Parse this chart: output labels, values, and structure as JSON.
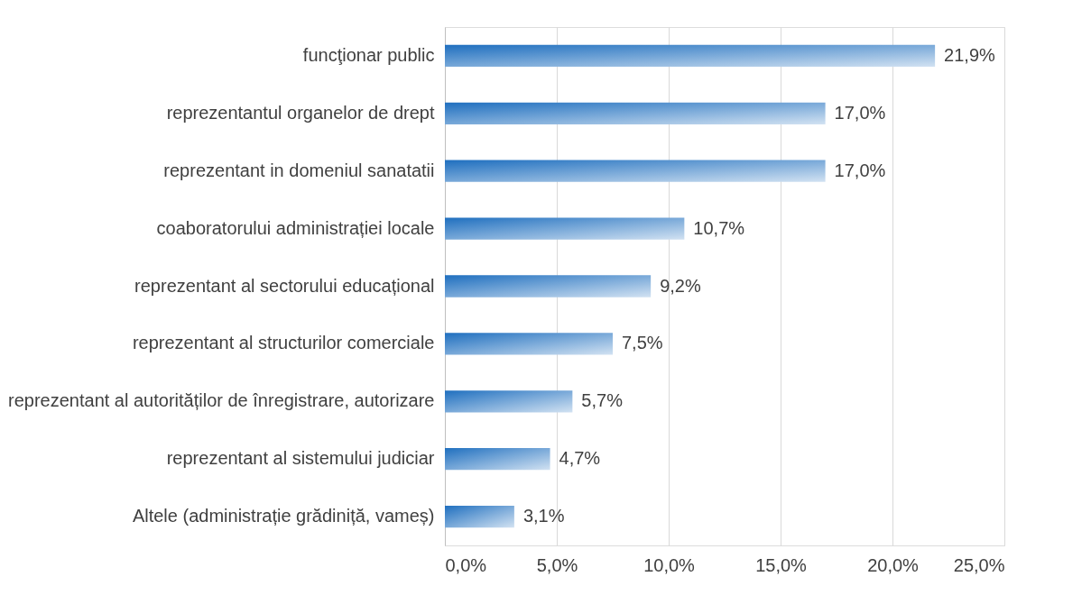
{
  "chart_data": {
    "type": "bar",
    "orientation": "horizontal",
    "categories": [
      "funcţionar public",
      "reprezentantul organelor de drept",
      "reprezentant in domeniul sanatatii",
      "coaboratorului administrației locale",
      "reprezentant al sectorului educațional",
      "reprezentant al structurilor comerciale",
      "reprezentant al autorităților de înregistrare, autorizare",
      "reprezentant al sistemului judiciar",
      "Altele (administrație grădiniță, vameș)"
    ],
    "values": [
      21.9,
      17.0,
      17.0,
      10.7,
      9.2,
      7.5,
      5.7,
      4.7,
      3.1
    ],
    "value_labels": [
      "21,9%",
      "17,0%",
      "17,0%",
      "10,7%",
      "9,2%",
      "7,5%",
      "5,7%",
      "4,7%",
      "3,1%"
    ],
    "color": "#1f6fbf",
    "xlim": [
      0,
      25
    ],
    "xticks": [
      {
        "value": 0,
        "label": "0,0%"
      },
      {
        "value": 5,
        "label": "5,0%"
      },
      {
        "value": 10,
        "label": "10,0%"
      },
      {
        "value": 15,
        "label": "15,0%"
      },
      {
        "value": 20,
        "label": "20,0%"
      },
      {
        "value": 25,
        "label": "25,0%"
      }
    ],
    "grid": "x"
  }
}
